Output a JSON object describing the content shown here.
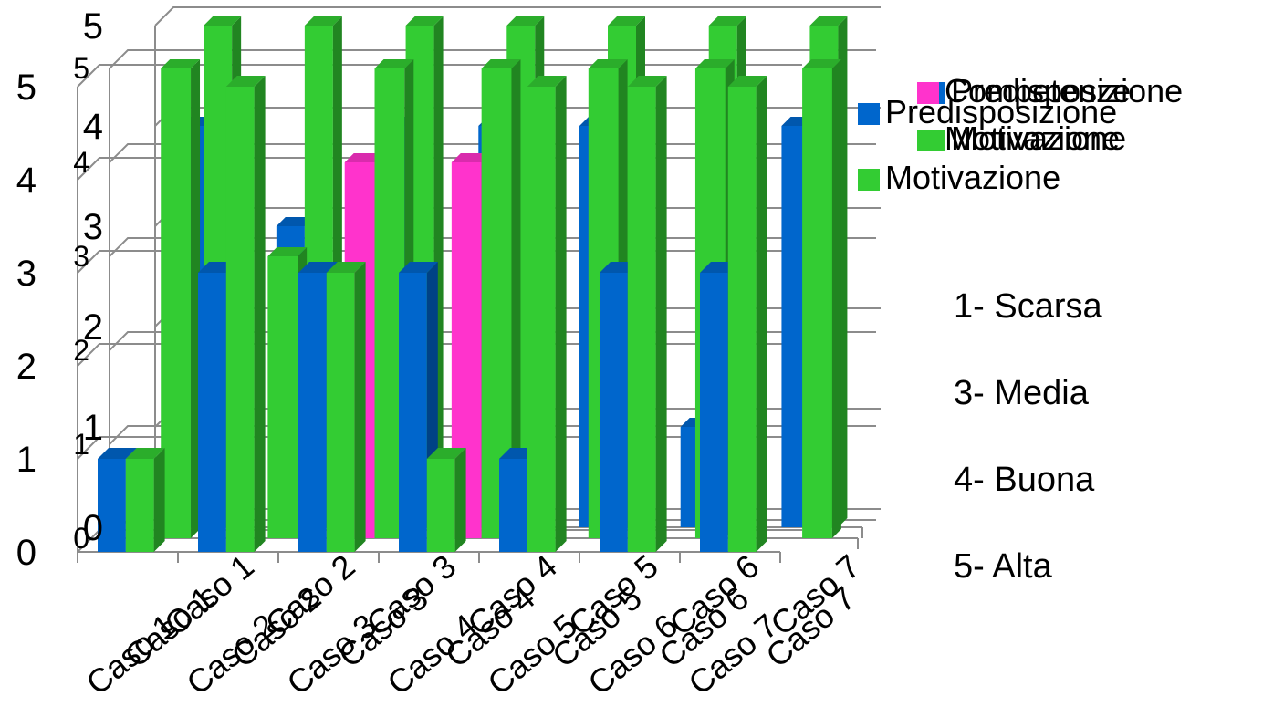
{
  "chart_data": [
    {
      "type": "bar",
      "view": "3d",
      "categories": [
        "Caso 1",
        "Caso 2",
        "Caso 3",
        "Caso 4",
        "Caso 5",
        "Caso 6",
        "Caso 7"
      ],
      "series": [
        {
          "name": "Predisposizione",
          "color": "#0066cc",
          "values": [
            4,
            3,
            4,
            4,
            4,
            1,
            4
          ]
        },
        {
          "name": "Motivazione",
          "color": "#33cc33",
          "values": [
            5,
            5,
            5,
            5,
            5,
            5,
            5
          ]
        }
      ],
      "ylim": [
        0,
        5
      ],
      "yticks": [
        "0",
        "1",
        "2",
        "3",
        "4",
        "5"
      ],
      "grid": true,
      "legend_position": "right"
    },
    {
      "type": "bar",
      "view": "3d",
      "categories": [
        "Caso 1",
        "Caso 2",
        "Caso 3",
        "Caso 4",
        "Caso 5",
        "Caso 6",
        "Caso 7"
      ],
      "series": [
        {
          "name": "Competenze",
          "color": "#ff33cc",
          "values": [
            0,
            0,
            4,
            4,
            0,
            0,
            0
          ]
        },
        {
          "name": "Motivazione",
          "color": "#33cc33",
          "values": [
            5,
            3,
            5,
            5,
            5,
            5,
            5
          ]
        }
      ],
      "ylim": [
        0,
        5
      ],
      "yticks": [
        "0",
        "1",
        "2",
        "3",
        "4",
        "5"
      ],
      "grid": true,
      "legend_position": "right"
    },
    {
      "type": "bar",
      "view": "3d",
      "categories": [
        "Caso 1",
        "Caso 2",
        "Caso 3",
        "Caso 4",
        "Caso 5",
        "Caso 6",
        "Caso 7"
      ],
      "series": [
        {
          "name": "Predisposizione",
          "color": "#0066cc",
          "values": [
            1,
            3,
            3,
            3,
            1,
            3,
            3
          ]
        },
        {
          "name": "Motivazione",
          "color": "#33cc33",
          "values": [
            1,
            5,
            3,
            1,
            5,
            5,
            5
          ]
        }
      ],
      "ylim": [
        0,
        5
      ],
      "yticks": [
        "0",
        "1",
        "2",
        "3",
        "4",
        "5"
      ],
      "grid": true,
      "legend_position": "right"
    }
  ],
  "legend_key": [
    "1- Scarsa",
    "3- Media",
    "4- Buona",
    "5- Alta"
  ]
}
